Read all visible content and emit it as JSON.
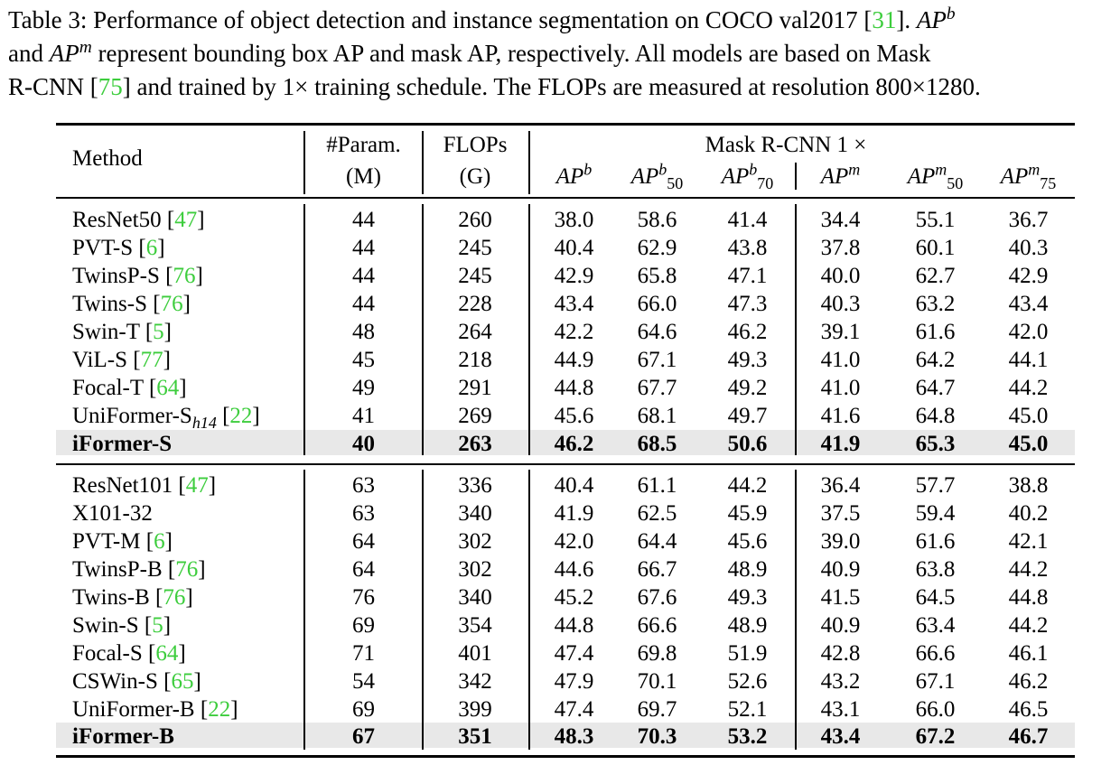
{
  "caption": {
    "line1_a": "Table 3: Performance of object detection and instance segmentation on COCO val2017 [",
    "line1_cite": "31",
    "line1_b": "]. ",
    "line1_math": "AP",
    "line1_sup": "b",
    "line2_a": "and ",
    "line2_math": "AP",
    "line2_sup": "m",
    "line2_b": " represent bounding box AP and mask AP, respectively.  All models are based on Mask",
    "line3_a": "R-CNN [",
    "line3_cite": "75",
    "line3_b": "] and trained by 1× training schedule. The FLOPs are measured at resolution 800×1280."
  },
  "header": {
    "method": "Method",
    "param_line1": "#Param.",
    "param_line2": "(M)",
    "flops_line1": "FLOPs",
    "flops_line2": "(G)",
    "group": "Mask R-CNN 1 ×",
    "metrics": [
      {
        "base": "AP",
        "sup": "b",
        "sub": ""
      },
      {
        "base": "AP",
        "sup": "b",
        "sub": "50"
      },
      {
        "base": "AP",
        "sup": "b",
        "sub": "70"
      },
      {
        "base": "AP",
        "sup": "m",
        "sub": ""
      },
      {
        "base": "AP",
        "sup": "m",
        "sub": "50"
      },
      {
        "base": "AP",
        "sup": "m",
        "sub": "75"
      }
    ]
  },
  "rows": [
    {
      "method": "ResNet50",
      "sub": "",
      "cite": "47",
      "param": "44",
      "flops": "260",
      "vals": [
        "38.0",
        "58.6",
        "41.4",
        "34.4",
        "55.1",
        "36.7"
      ],
      "bold": false
    },
    {
      "method": "PVT-S",
      "sub": "",
      "cite": "6",
      "param": "44",
      "flops": "245",
      "vals": [
        "40.4",
        "62.9",
        "43.8",
        "37.8",
        "60.1",
        "40.3"
      ],
      "bold": false
    },
    {
      "method": "TwinsP-S",
      "sub": "",
      "cite": "76",
      "param": "44",
      "flops": "245",
      "vals": [
        "42.9",
        "65.8",
        "47.1",
        "40.0",
        "62.7",
        "42.9"
      ],
      "bold": false
    },
    {
      "method": "Twins-S",
      "sub": "",
      "cite": "76",
      "param": "44",
      "flops": "228",
      "vals": [
        "43.4",
        "66.0",
        "47.3",
        "40.3",
        "63.2",
        "43.4"
      ],
      "bold": false
    },
    {
      "method": "Swin-T",
      "sub": "",
      "cite": "5",
      "param": "48",
      "flops": "264",
      "vals": [
        "42.2",
        "64.6",
        "46.2",
        "39.1",
        "61.6",
        "42.0"
      ],
      "bold": false
    },
    {
      "method": "ViL-S",
      "sub": "",
      "cite": "77",
      "param": "45",
      "flops": "218",
      "vals": [
        "44.9",
        "67.1",
        "49.3",
        "41.0",
        "64.2",
        "44.1"
      ],
      "bold": false
    },
    {
      "method": "Focal-T",
      "sub": "",
      "cite": "64",
      "param": "49",
      "flops": "291",
      "vals": [
        "44.8",
        "67.7",
        "49.2",
        "41.0",
        "64.7",
        "44.2"
      ],
      "bold": false
    },
    {
      "method": "UniFormer-S",
      "sub": "h14",
      "cite": "22",
      "param": "41",
      "flops": "269",
      "vals": [
        "45.6",
        "68.1",
        "49.7",
        "41.6",
        "64.8",
        "45.0"
      ],
      "bold": false
    },
    {
      "method": "iFormer-S",
      "sub": "",
      "cite": "",
      "param": "40",
      "flops": "263",
      "vals": [
        "46.2",
        "68.5",
        "50.6",
        "41.9",
        "65.3",
        "45.0"
      ],
      "bold": true
    },
    {
      "method": "ResNet101",
      "sub": "",
      "cite": "47",
      "param": "63",
      "flops": "336",
      "vals": [
        "40.4",
        "61.1",
        "44.2",
        "36.4",
        "57.7",
        "38.8"
      ],
      "bold": false
    },
    {
      "method": "X101-32",
      "sub": "",
      "cite": "",
      "param": "63",
      "flops": "340",
      "vals": [
        "41.9",
        "62.5",
        "45.9",
        "37.5",
        "59.4",
        "40.2"
      ],
      "bold": false
    },
    {
      "method": "PVT-M",
      "sub": "",
      "cite": "6",
      "param": "64",
      "flops": "302",
      "vals": [
        "42.0",
        "64.4",
        "45.6",
        "39.0",
        "61.6",
        "42.1"
      ],
      "bold": false
    },
    {
      "method": "TwinsP-B",
      "sub": "",
      "cite": "76",
      "param": "64",
      "flops": "302",
      "vals": [
        "44.6",
        "66.7",
        "48.9",
        "40.9",
        "63.8",
        "44.2"
      ],
      "bold": false
    },
    {
      "method": "Twins-B",
      "sub": "",
      "cite": "76",
      "param": "76",
      "flops": "340",
      "vals": [
        "45.2",
        "67.6",
        "49.3",
        "41.5",
        "64.5",
        "44.8"
      ],
      "bold": false
    },
    {
      "method": "Swin-S",
      "sub": "",
      "cite": "5",
      "param": "69",
      "flops": "354",
      "vals": [
        "44.8",
        "66.6",
        "48.9",
        "40.9",
        "63.4",
        "44.2"
      ],
      "bold": false
    },
    {
      "method": "Focal-S",
      "sub": "",
      "cite": "64",
      "param": "71",
      "flops": "401",
      "vals": [
        "47.4",
        "69.8",
        "51.9",
        "42.8",
        "66.6",
        "46.1"
      ],
      "bold": false
    },
    {
      "method": "CSWin-S",
      "sub": "",
      "cite": "65",
      "param": "54",
      "flops": "342",
      "vals": [
        "47.9",
        "70.1",
        "52.6",
        "43.2",
        "67.1",
        "46.2"
      ],
      "bold": false
    },
    {
      "method": "UniFormer-B",
      "sub": "",
      "cite": "22",
      "param": "69",
      "flops": "399",
      "vals": [
        "47.4",
        "69.7",
        "52.1",
        "43.1",
        "66.0",
        "46.5"
      ],
      "bold": false
    },
    {
      "method": "iFormer-B",
      "sub": "",
      "cite": "",
      "param": "67",
      "flops": "351",
      "vals": [
        "48.3",
        "70.3",
        "53.2",
        "43.4",
        "67.2",
        "46.7"
      ],
      "bold": true
    }
  ]
}
